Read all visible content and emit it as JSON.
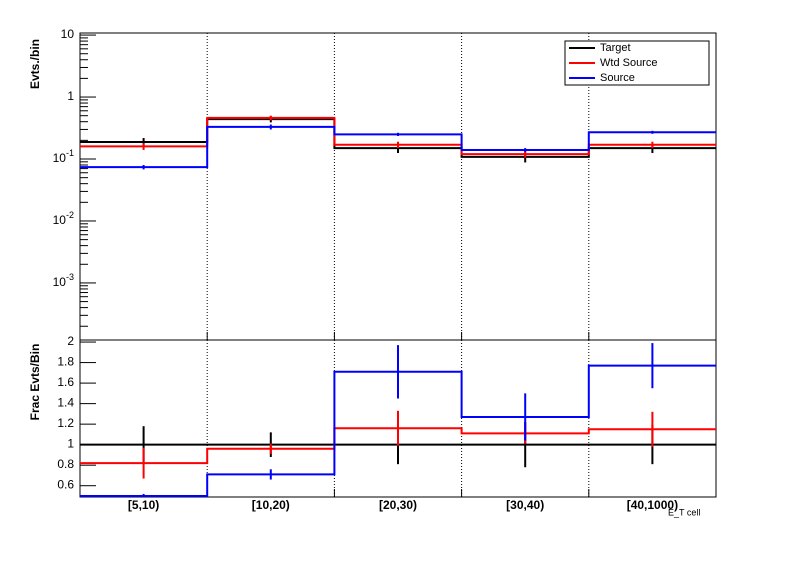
{
  "chart_data": [
    {
      "type": "step",
      "log_y": true,
      "ylabel": "Evts./bin",
      "ylim": [
        0.00012,
        10.8
      ],
      "yticks": [
        10,
        1,
        {
          "value": 0.1,
          "label": "10",
          "exponent": "-1"
        },
        {
          "value": 0.01,
          "label": "10",
          "exponent": "-2"
        },
        {
          "value": 0.001,
          "label": "10",
          "exponent": "-3"
        }
      ],
      "xgrid": true,
      "legend": "top-right",
      "series": [
        {
          "name": "Target",
          "color": "#000000",
          "values": [
            0.188,
            0.44,
            0.15,
            0.108,
            0.15
          ],
          "errors": [
            0.03,
            0.05,
            0.025,
            0.02,
            0.025
          ]
        },
        {
          "name": "Wtd Source",
          "color": "#ff0000",
          "values": [
            0.16,
            0.46,
            0.17,
            0.12,
            0.17
          ],
          "errors": [
            0.02,
            0.04,
            0.02,
            0.015,
            0.02
          ]
        },
        {
          "name": "Source",
          "color": "#0000ff",
          "values": [
            0.074,
            0.33,
            0.25,
            0.14,
            0.27
          ],
          "errors": [
            0.006,
            0.03,
            0.015,
            0.01,
            0.015
          ]
        }
      ]
    },
    {
      "type": "step",
      "ylabel": "Frac Evts/Bin",
      "xlabel": "E_T cell",
      "categories": [
        "[5,10)",
        "[10,20)",
        "[20,30)",
        "[30,40)",
        "[40,1000)"
      ],
      "ylim": [
        0.49,
        2.02
      ],
      "yticks": [
        0.6,
        0.8,
        1,
        1.2,
        1.4,
        1.6,
        1.8,
        2
      ],
      "xgrid": true,
      "series": [
        {
          "name": "Target",
          "color": "#000000",
          "values": [
            1,
            1,
            1,
            1,
            1
          ],
          "errors": [
            0.18,
            0.12,
            0.19,
            0.22,
            0.19
          ]
        },
        {
          "name": "Wtd Source",
          "color": "#ff0000",
          "values": [
            0.82,
            0.96,
            1.16,
            1.11,
            1.15
          ],
          "errors": [
            0.15,
            0.05,
            0.17,
            0.1,
            0.17
          ]
        },
        {
          "name": "Source",
          "color": "#0000ff",
          "values": [
            0.5,
            0.71,
            1.71,
            1.27,
            1.77
          ],
          "errors": [
            0.02,
            0.05,
            0.26,
            0.23,
            0.22
          ]
        }
      ]
    }
  ]
}
